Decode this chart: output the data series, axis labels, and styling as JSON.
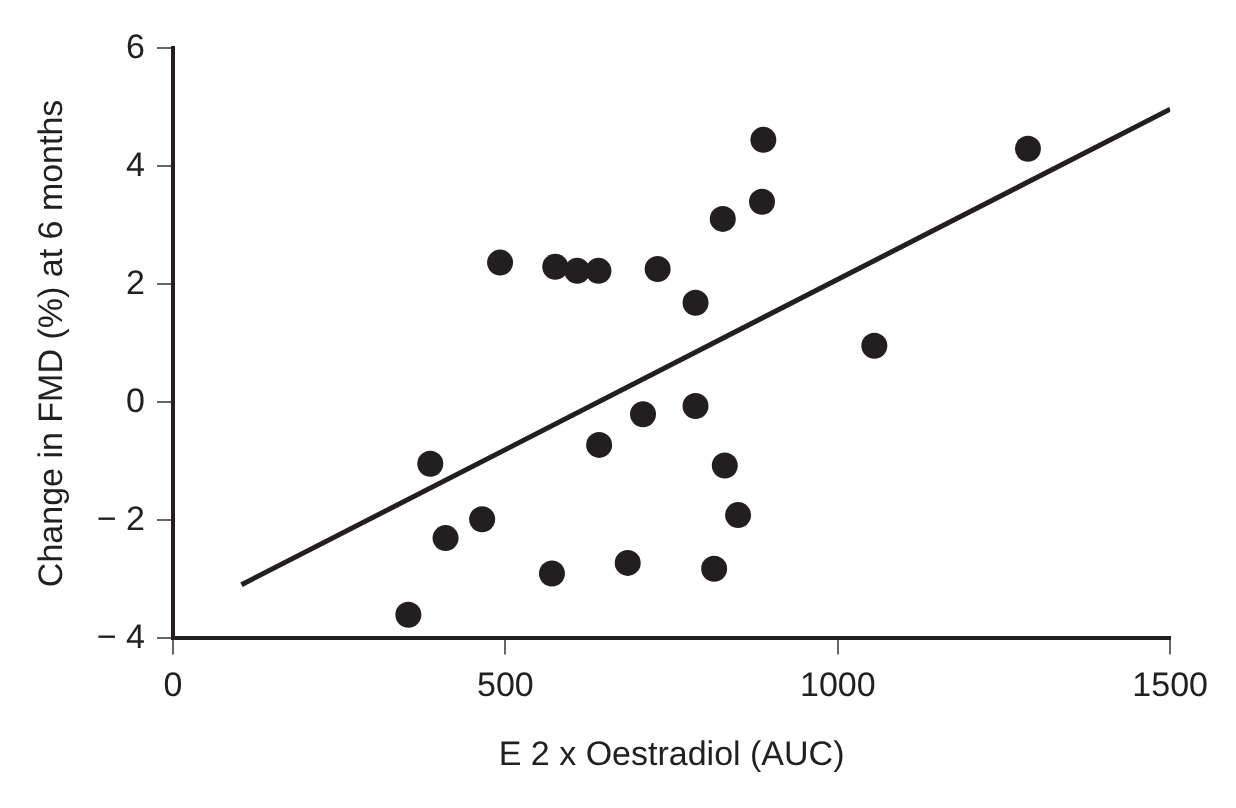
{
  "chart_data": {
    "type": "scatter",
    "xlabel": "E 2 x Oestradiol (AUC)",
    "ylabel": "Change in FMD (%) at 6 months",
    "xlim": [
      0,
      1500
    ],
    "xticks": [
      0,
      500,
      1000,
      1500
    ],
    "ylim": [
      -4,
      6
    ],
    "yticks": [
      -4,
      -2,
      0,
      2,
      4,
      6
    ],
    "grid": false,
    "legend": false,
    "marker": "circle",
    "series": [
      {
        "type": "scatter",
        "color": "#231f20",
        "x": [
          492,
          575,
          608,
          640,
          387,
          465,
          410,
          570,
          354,
          641,
          684,
          729,
          786,
          827,
          886,
          888,
          1286,
          1055,
          707,
          786,
          830,
          850,
          814
        ],
        "values": [
          2.37,
          2.3,
          2.23,
          2.23,
          -1.04,
          -1.98,
          -2.3,
          -2.9,
          -3.6,
          -0.72,
          -2.72,
          2.26,
          1.69,
          3.11,
          3.4,
          4.45,
          4.3,
          0.96,
          -0.2,
          -0.06,
          -1.07,
          -1.91,
          -2.82
        ]
      },
      {
        "type": "line",
        "color": "#231f20",
        "line_style": "solid",
        "marker": "none",
        "x": [
          103,
          1500
        ],
        "values": [
          -3.09,
          4.97
        ]
      }
    ]
  }
}
